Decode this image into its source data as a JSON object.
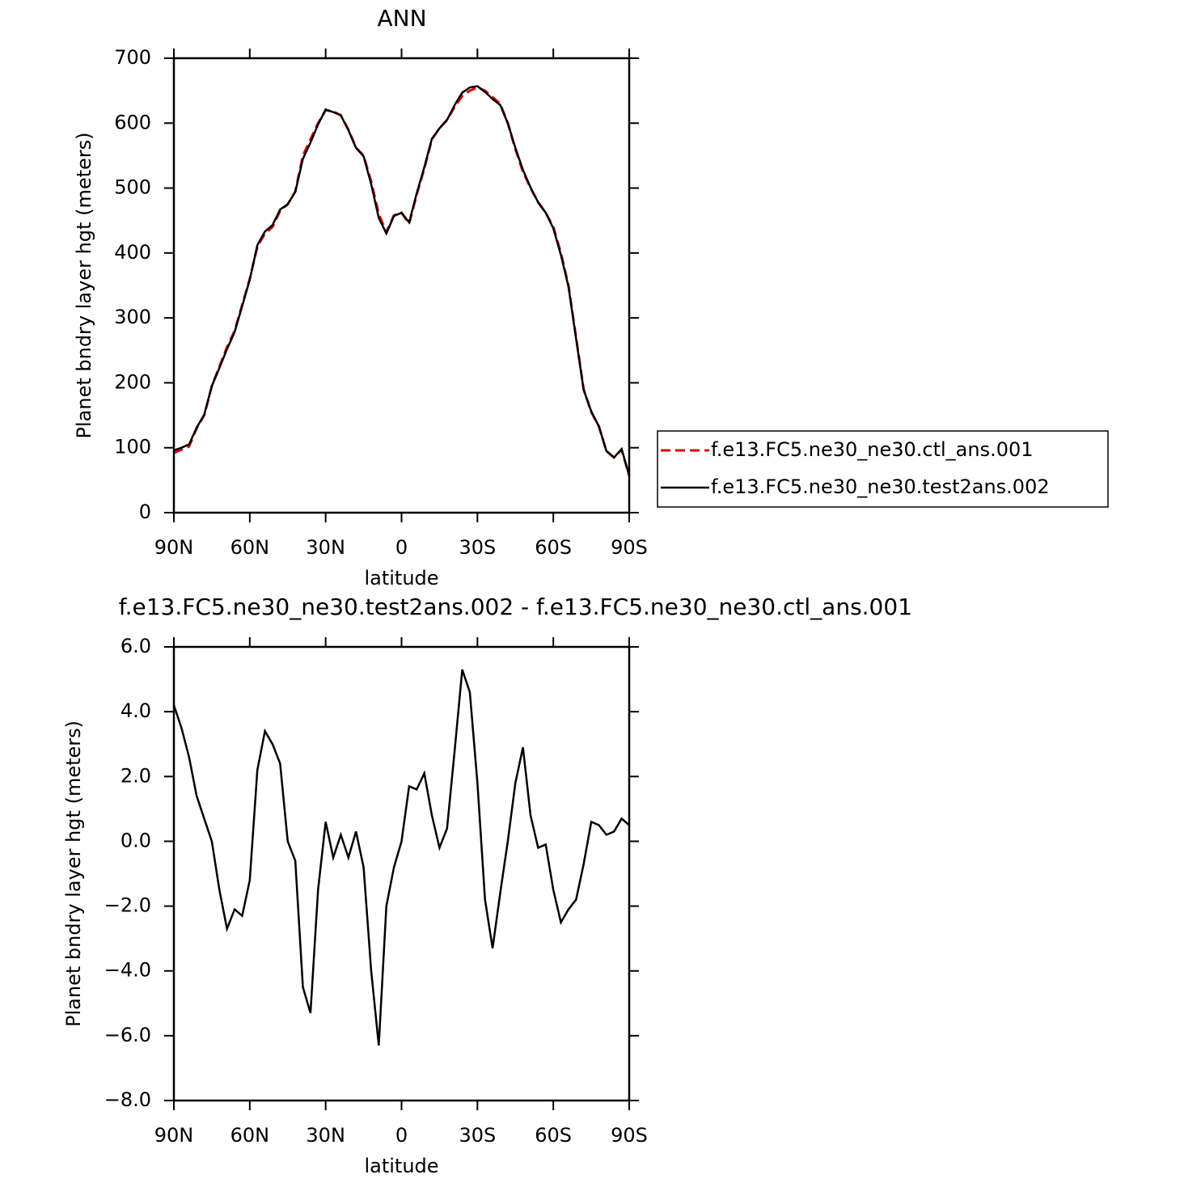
{
  "chart_data": [
    {
      "type": "line",
      "title": "ANN",
      "xlabel": "latitude",
      "ylabel": "Planet bndry layer hgt (meters)",
      "x": [
        90,
        87,
        84,
        81,
        78,
        75,
        72,
        69,
        66,
        63,
        60,
        57,
        54,
        51,
        48,
        45,
        42,
        39,
        36,
        33,
        30,
        27,
        24,
        21,
        18,
        15,
        12,
        9,
        6,
        3,
        0,
        -3,
        -6,
        -9,
        -12,
        -15,
        -18,
        -21,
        -24,
        -27,
        -30,
        -33,
        -36,
        -39,
        -42,
        -45,
        -48,
        -51,
        -54,
        -57,
        -60,
        -63,
        -66,
        -69,
        -72,
        -75,
        -78,
        -81,
        -84,
        -87,
        -90
      ],
      "xlim": [
        90,
        -90
      ],
      "xticks": [
        {
          "value": 90,
          "label": "90N"
        },
        {
          "value": 60,
          "label": "60N"
        },
        {
          "value": 30,
          "label": "30N"
        },
        0,
        {
          "value": -30,
          "label": "30S"
        },
        {
          "value": -60,
          "label": "60S"
        },
        {
          "value": -90,
          "label": "90S"
        }
      ],
      "ylim": [
        0,
        700
      ],
      "yticks": [
        0,
        100,
        200,
        300,
        400,
        500,
        600,
        700
      ],
      "legend": "right",
      "series": [
        {
          "name": "f.e13.FC5.ne30_ne30.ctl_ans.001",
          "color": "#e00000",
          "line_style": "dashed",
          "values": [
            92,
            97,
            102,
            130,
            150,
            195,
            225,
            255,
            280,
            320,
            360,
            410,
            430,
            440,
            465,
            475,
            495,
            550,
            575,
            600,
            620,
            618,
            612,
            590,
            562,
            550,
            510,
            460,
            432,
            458,
            462,
            445,
            490,
            530,
            575,
            592,
            605,
            625,
            642,
            650,
            655,
            650,
            640,
            630,
            600,
            560,
            525,
            500,
            478,
            462,
            440,
            400,
            350,
            270,
            190,
            155,
            133,
            95,
            85,
            97,
            57
          ]
        },
        {
          "name": "f.e13.FC5.ne30_ne30.test2ans.002",
          "color": "#000000",
          "line_style": "solid",
          "values": [
            96,
            100,
            105,
            131,
            151,
            195,
            223,
            252,
            278,
            318,
            359,
            412,
            433,
            443,
            467,
            475,
            494,
            545,
            570,
            598,
            621,
            617,
            612,
            589,
            562,
            549,
            506,
            454,
            430,
            457,
            462,
            447,
            492,
            532,
            576,
            592,
            605,
            628,
            647,
            655,
            657,
            648,
            637,
            628,
            600,
            562,
            528,
            501,
            478,
            462,
            438,
            397,
            348,
            268,
            189,
            156,
            133,
            95,
            85,
            98,
            57
          ]
        }
      ]
    },
    {
      "type": "line",
      "title": "f.e13.FC5.ne30_ne30.test2ans.002 - f.e13.FC5.ne30_ne30.ctl_ans.001",
      "xlabel": "latitude",
      "ylabel": "Planet bndry layer hgt (meters)",
      "x": [
        90,
        87,
        84,
        81,
        78,
        75,
        72,
        69,
        66,
        63,
        60,
        57,
        54,
        51,
        48,
        45,
        42,
        39,
        36,
        33,
        30,
        27,
        24,
        21,
        18,
        15,
        12,
        9,
        6,
        3,
        0,
        -3,
        -6,
        -9,
        -12,
        -15,
        -18,
        -21,
        -24,
        -27,
        -30,
        -33,
        -36,
        -39,
        -42,
        -45,
        -48,
        -51,
        -54,
        -57,
        -60,
        -63,
        -66,
        -69,
        -72,
        -75,
        -78,
        -81,
        -84,
        -87,
        -90
      ],
      "xlim": [
        90,
        -90
      ],
      "xticks": [
        {
          "value": 90,
          "label": "90N"
        },
        {
          "value": 60,
          "label": "60N"
        },
        {
          "value": 30,
          "label": "30N"
        },
        0,
        {
          "value": -30,
          "label": "30S"
        },
        {
          "value": -60,
          "label": "60S"
        },
        {
          "value": -90,
          "label": "90S"
        }
      ],
      "ylim": [
        -8,
        6
      ],
      "yticks": [
        {
          "value": -8,
          "label": "−8.0"
        },
        {
          "value": -6,
          "label": "−6.0"
        },
        {
          "value": -4,
          "label": "−4.0"
        },
        {
          "value": -2,
          "label": "−2.0"
        },
        {
          "value": 0,
          "label": "0.0"
        },
        {
          "value": 2,
          "label": "2.0"
        },
        {
          "value": 4,
          "label": "4.0"
        },
        {
          "value": 6,
          "label": "6.0"
        }
      ],
      "series": [
        {
          "color": "#000000",
          "line_style": "solid",
          "values": [
            4.2,
            3.5,
            2.6,
            1.4,
            0.7,
            0.0,
            -1.5,
            -2.7,
            -2.1,
            -2.3,
            -1.2,
            2.2,
            3.4,
            3.0,
            2.4,
            0.0,
            -0.6,
            -4.5,
            -5.3,
            -1.5,
            0.6,
            -0.5,
            0.2,
            -0.5,
            0.3,
            -0.8,
            -4.0,
            -6.3,
            -2.0,
            -0.8,
            0.0,
            1.7,
            1.6,
            2.1,
            0.8,
            -0.2,
            0.4,
            2.8,
            5.3,
            4.6,
            1.8,
            -1.8,
            -3.3,
            -1.6,
            0.0,
            1.8,
            2.9,
            0.8,
            -0.2,
            -0.1,
            -1.5,
            -2.5,
            -2.1,
            -1.8,
            -0.7,
            0.6,
            0.5,
            0.2,
            0.3,
            0.7,
            0.5
          ]
        }
      ]
    }
  ]
}
